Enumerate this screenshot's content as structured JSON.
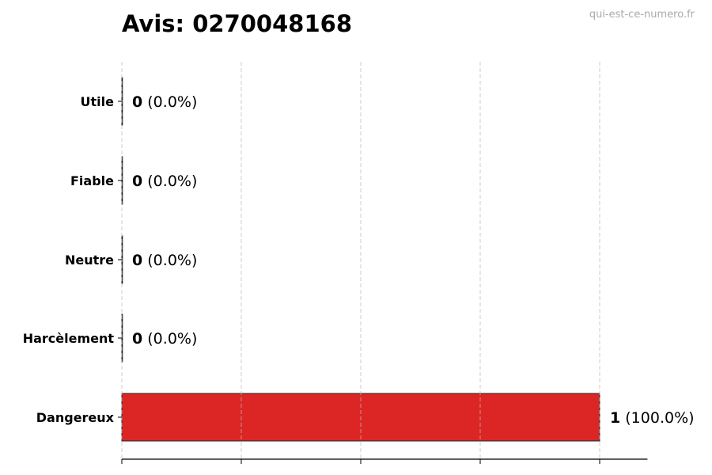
{
  "watermark": "qui-est-ce-numero.fr",
  "chart_data": {
    "type": "bar",
    "orientation": "horizontal",
    "title": "Avis: 0270048168",
    "xlabel": "",
    "ylabel": "",
    "categories": [
      "Utile",
      "Fiable",
      "Neutre",
      "Harcèlement",
      "Dangereux"
    ],
    "values": [
      0,
      0,
      0,
      0,
      1
    ],
    "percent_labels": [
      "(0.0%)",
      "(0.0%)",
      "(0.0%)",
      "(0.0%)",
      "(100.0%)"
    ],
    "xlim": [
      0,
      1.1
    ],
    "xticks": [
      0,
      0.25,
      0.5,
      0.75,
      1.0
    ],
    "grid": "vertical dashed",
    "bar_color": "#dc2626",
    "bar_edge_color": "#222222"
  }
}
